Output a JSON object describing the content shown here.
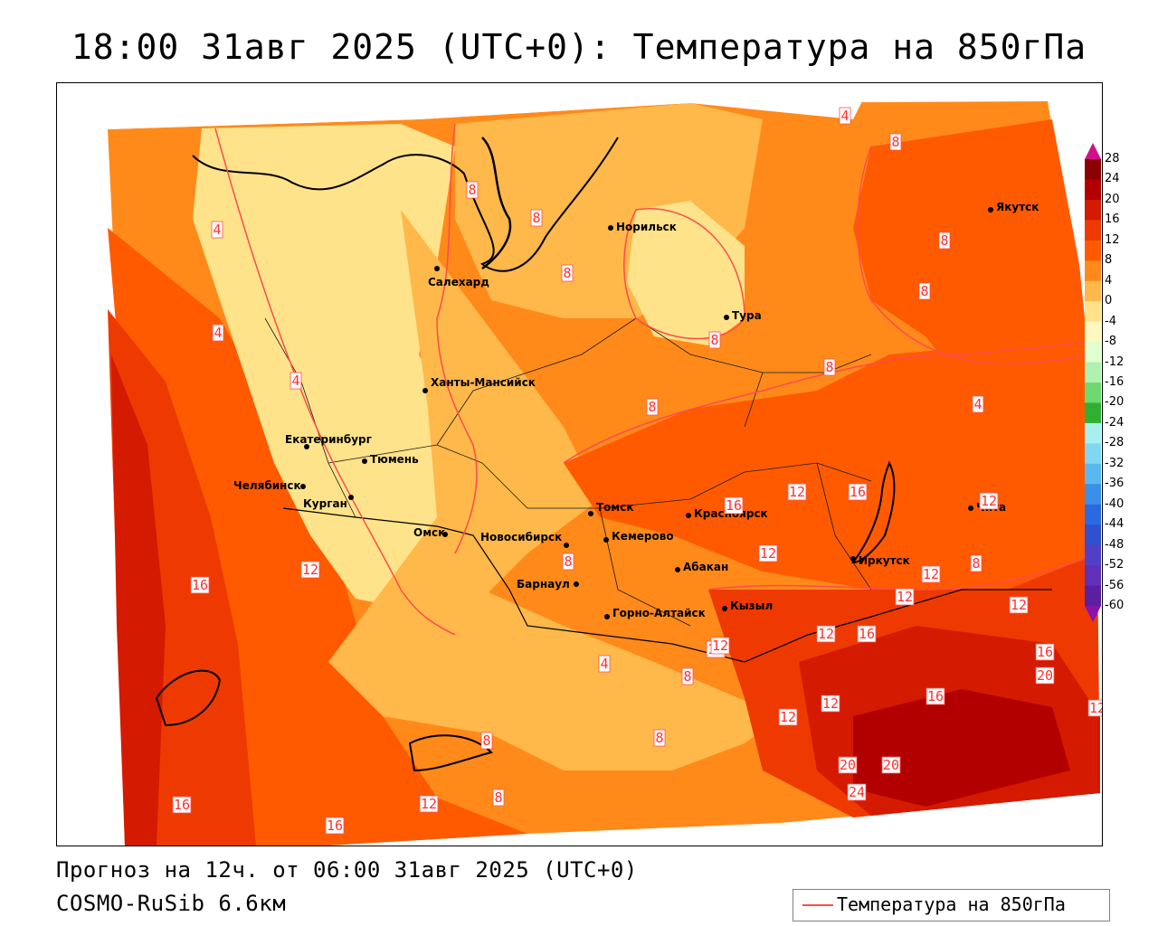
{
  "header": {
    "title": "18:00 31авг 2025 (UTC+0): Температура на 850гПа"
  },
  "footer": {
    "forecast_line": "Прогноз на 12ч. от 06:00 31авг 2025 (UTC+0)",
    "model_line": "COSMO-RuSib 6.6км"
  },
  "legend": {
    "series_label": "Температура на 850гПа",
    "series_color": "#ff4b4b"
  },
  "colorbar": {
    "ticks": [
      "28",
      "24",
      "20",
      "16",
      "12",
      "8",
      "4",
      "0",
      "-4",
      "-8",
      "-12",
      "-16",
      "-20",
      "-24",
      "-28",
      "-32",
      "-36",
      "-40",
      "-44",
      "-48",
      "-52",
      "-56",
      "-60"
    ],
    "colors": [
      "#8b0000",
      "#b20000",
      "#d41a00",
      "#ee3a00",
      "#ff5a00",
      "#ff8a1a",
      "#ffb84a",
      "#ffe38a",
      "#fff7c0",
      "#e0ffd0",
      "#b0f0b0",
      "#70d870",
      "#30b030",
      "#a8f0f0",
      "#80d8f0",
      "#5ab8f0",
      "#3a90e8",
      "#2a6ae0",
      "#3050d0",
      "#5040c8",
      "#6030b8",
      "#5a20a0",
      "#7a20a0"
    ],
    "top_arrow_color": "#d0108a",
    "bottom_arrow_color": "#8a10b0"
  },
  "cities": [
    {
      "name": "Норильск"
    },
    {
      "name": "Якутск"
    },
    {
      "name": "Салехард"
    },
    {
      "name": "Тура"
    },
    {
      "name": "Ханты-Мансийск"
    },
    {
      "name": "Екатеринбург"
    },
    {
      "name": "Тюмень"
    },
    {
      "name": "Челябинск"
    },
    {
      "name": "Курган"
    },
    {
      "name": "Омск"
    },
    {
      "name": "Томск"
    },
    {
      "name": "Красноярск"
    },
    {
      "name": "Новосибирск"
    },
    {
      "name": "Кемерово"
    },
    {
      "name": "Абакан"
    },
    {
      "name": "Иркутск"
    },
    {
      "name": "Чита"
    },
    {
      "name": "Барнаул"
    },
    {
      "name": "Горно-Алтайск"
    },
    {
      "name": "Кызыл"
    }
  ],
  "isoline_labels": [
    "4",
    "8",
    "8",
    "8",
    "4",
    "8",
    "8",
    "8",
    "4",
    "8",
    "4",
    "8",
    "8",
    "4",
    "12",
    "16",
    "16",
    "12",
    "12",
    "12",
    "12",
    "8",
    "12",
    "16",
    "12",
    "12",
    "8",
    "12",
    "4",
    "8",
    "8",
    "8",
    "12",
    "12",
    "16",
    "20",
    "16",
    "12",
    "12",
    "20",
    "20",
    "24",
    "16",
    "12",
    "8",
    "16",
    "16"
  ]
}
